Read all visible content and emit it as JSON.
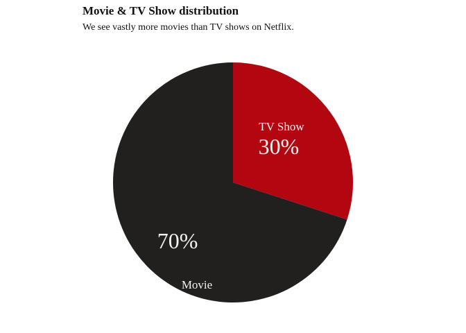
{
  "chart_data": {
    "type": "pie",
    "title": "Movie & TV Show distribution",
    "subtitle": "We see vastly more movies than TV shows on Netflix.",
    "start_angle_deg": 0,
    "direction": "clockwise",
    "legend": "none",
    "slices": [
      {
        "name": "TV Show",
        "value": 30,
        "label": "30%",
        "color": "#b20710"
      },
      {
        "name": "Movie",
        "value": 70,
        "label": "70%",
        "color": "#221f1f"
      }
    ]
  }
}
